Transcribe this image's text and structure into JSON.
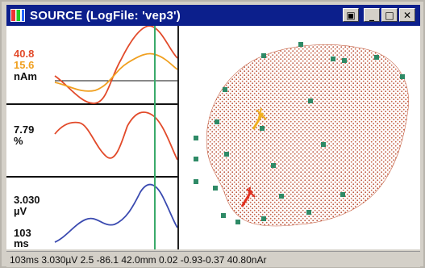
{
  "window": {
    "title": "SOURCE (LogFile: 'vep3')",
    "buttons": {
      "pin": "▣",
      "minimize": "_",
      "maximize": "□",
      "close": "✕"
    }
  },
  "traces": {
    "top": {
      "value1": "40.8",
      "value2": "15.6",
      "unit": "nAm"
    },
    "middle": {
      "value": "7.79",
      "unit": "%"
    },
    "bottom": {
      "value": "3.030",
      "unit": "µV",
      "time": "103",
      "time_unit": "ms"
    }
  },
  "status": {
    "text": "103ms 3.030µV 2.5 -86.1 42.0mm 0.02 -0.93-0.37 40.80nAr"
  },
  "colors": {
    "title_bar": "#0c1f8c",
    "red_trace": "#e24a2a",
    "orange_trace": "#f0a020",
    "blue_trace": "#3a4ab0",
    "cursor": "#3aaa6a",
    "electrode": "#2e8a66",
    "brain_dots": "#b9513a"
  }
}
